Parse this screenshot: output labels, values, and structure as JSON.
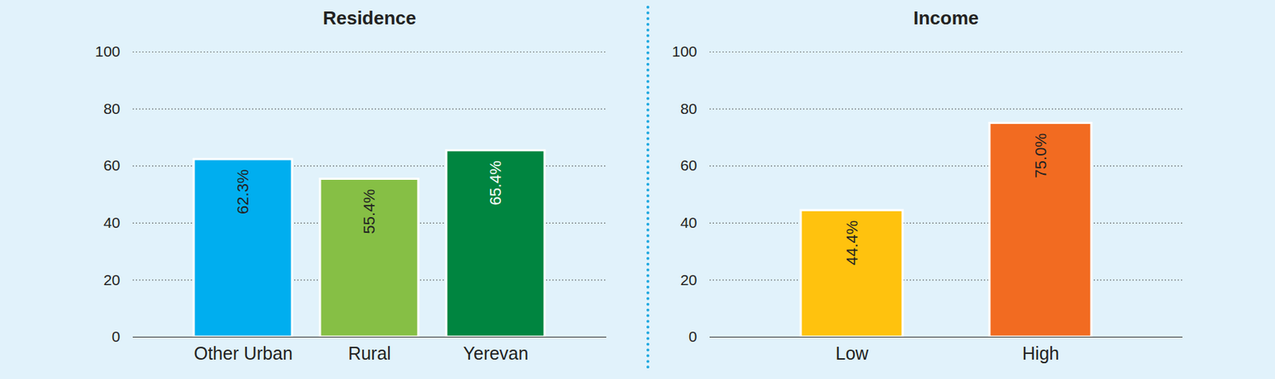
{
  "chart_data": [
    {
      "type": "bar",
      "title": "Residence",
      "categories": [
        "Other Urban",
        "Rural",
        "Yerevan"
      ],
      "values": [
        62.3,
        55.4,
        65.4
      ],
      "value_labels": [
        "62.3%",
        "55.4%",
        "65.4%"
      ],
      "colors": [
        "#00aeef",
        "#86bf45",
        "#008540"
      ],
      "ylim": [
        0,
        100
      ],
      "yticks": [
        0,
        20,
        40,
        60,
        80,
        100
      ],
      "grid": true,
      "data_labels": true
    },
    {
      "type": "bar",
      "title": "Income",
      "categories": [
        "Low",
        "High"
      ],
      "values": [
        44.4,
        75.0
      ],
      "value_labels": [
        "44.4%",
        "75.0%"
      ],
      "colors": [
        "#ffc20e",
        "#f26b21"
      ],
      "ylim": [
        0,
        100
      ],
      "yticks": [
        0,
        20,
        40,
        60,
        80,
        100
      ],
      "grid": true,
      "data_labels": true
    }
  ]
}
